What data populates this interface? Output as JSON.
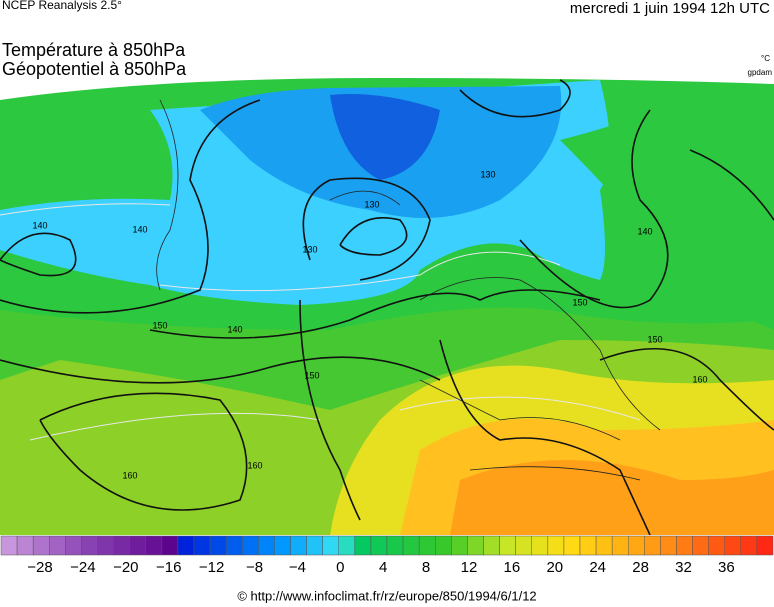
{
  "header": {
    "source": "NCEP Reanalysis 2.5°",
    "date": "mercredi 1 juin 1994 12h UTC",
    "title_lines": [
      "Température à 850hPa",
      "Géopotentiel à 850hPa"
    ],
    "units": [
      "°C",
      "gpdam"
    ]
  },
  "map": {
    "contour_labels": [
      "140",
      "130",
      "150",
      "140",
      "160",
      "160",
      "150",
      "130",
      "130",
      "140",
      "140",
      "150",
      "150",
      "160"
    ]
  },
  "legend": {
    "tick_labels": [
      "−28",
      "−24",
      "−20",
      "−16",
      "−12",
      "−8",
      "−4",
      "0",
      "4",
      "8",
      "12",
      "16",
      "20",
      "24",
      "28",
      "32",
      "36"
    ]
  },
  "footer": {
    "credit": "© http://www.infoclimat.fr/rz/europe/850/1994/6/1/12"
  }
}
